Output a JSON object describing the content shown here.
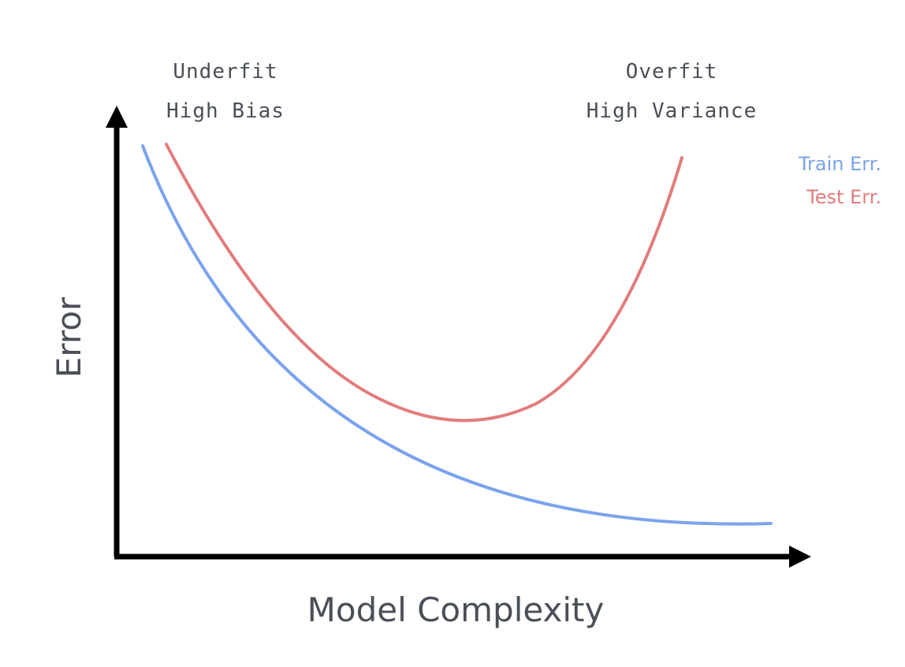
{
  "annotations": {
    "left": {
      "line1": "Underfit",
      "line2": "High Bias"
    },
    "right": {
      "line1": "Overfit",
      "line2": "High Variance"
    }
  },
  "axes": {
    "x_title": "Model Complexity",
    "y_title": "Error"
  },
  "legend": {
    "train": "Train Err.",
    "test": "Test Err."
  },
  "colors": {
    "text": "#4a4f57",
    "axis": "#000000",
    "train": "#7aa3ec",
    "test": "#e27c7c"
  }
}
